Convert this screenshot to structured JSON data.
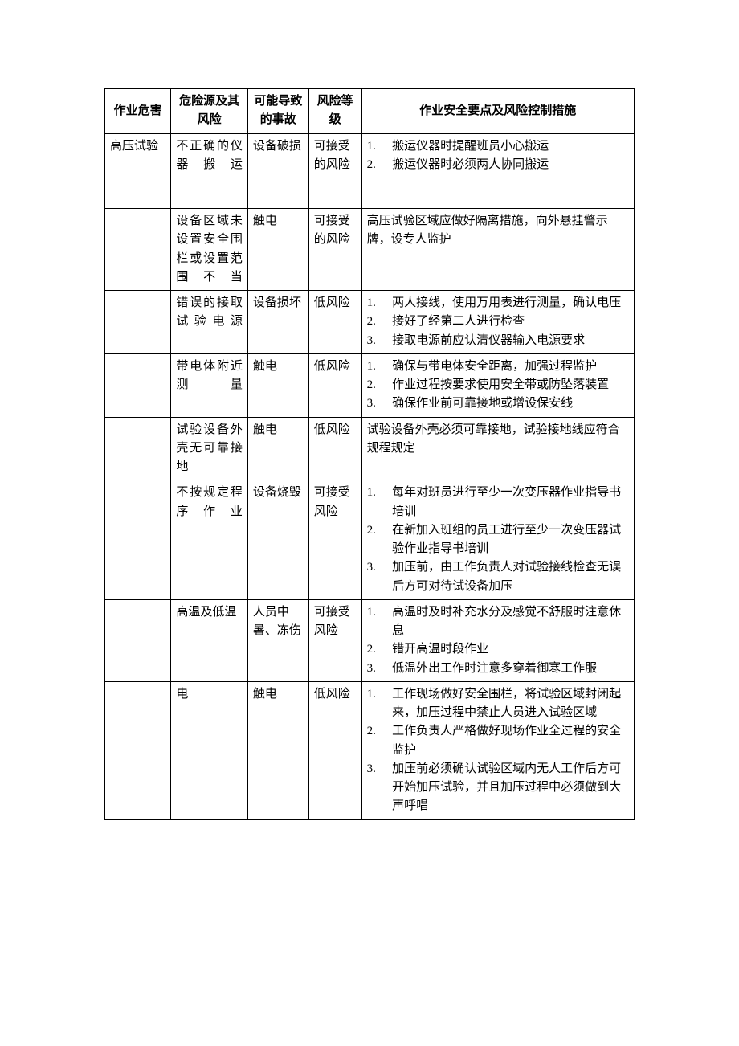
{
  "type": "table",
  "columns": [
    {
      "key": "hazard",
      "label": "作业危害",
      "width": "12.5%",
      "align": "center"
    },
    {
      "key": "source",
      "label": "危险源及其风险",
      "width": "14.5%",
      "align": "justify"
    },
    {
      "key": "accident",
      "label": "可能导致的事故",
      "width": "11.5%",
      "align": "left"
    },
    {
      "key": "level",
      "label": "风险等级",
      "width": "10%",
      "align": "left"
    },
    {
      "key": "measures",
      "label": "作业安全要点及风险控制措施",
      "width": "51.5%",
      "align": "left"
    }
  ],
  "rows": [
    {
      "hazard": "高压试验",
      "source": "不正确的仪器搬运",
      "source_justify": true,
      "accident": "设备破损",
      "level": "可接受的风险",
      "measures_list": [
        "搬运仪器时提醒班员小心搬运",
        "搬运仪器时必须两人协同搬运"
      ],
      "measures_extra_space": true
    },
    {
      "hazard": "",
      "source": "设备区域未设置安全围栏或设置范围不当",
      "source_justify": true,
      "accident": "触电",
      "level": "可接受的风险",
      "measures_plain": "高压试验区域应做好隔离措施，向外悬挂警示牌，设专人监护"
    },
    {
      "hazard": "",
      "source": "错误的接取试验电源",
      "source_justify": true,
      "accident": "设备损坏",
      "level": "低风险",
      "measures_list": [
        "两人接线，使用万用表进行测量，确认电压",
        "接好了经第二人进行检查",
        "接取电源前应认清仪器输入电源要求"
      ]
    },
    {
      "hazard": "",
      "source": "带电体附近测量",
      "source_justify": true,
      "accident": "触电",
      "level": "低风险",
      "measures_list": [
        "确保与带电体安全距离，加强过程监护",
        "作业过程按要求使用安全带或防坠落装置",
        "确保作业前可靠接地或增设保安线"
      ]
    },
    {
      "hazard": "",
      "source": "试验设备外壳无可靠接地",
      "source_justify": true,
      "accident": "触电",
      "level": "低风险",
      "measures_plain": "试验设备外壳必须可靠接地，试验接地线应符合规程规定"
    },
    {
      "hazard": "",
      "source": "不按规定程序作业",
      "source_justify": true,
      "accident": "设备烧毁",
      "level": "可接受风险",
      "measures_list": [
        "每年对班员进行至少一次变压器作业指导书培训",
        "在新加入班组的员工进行至少一次变压器试验作业指导书培训",
        "加压前，由工作负责人对试验接线检查无误后方可对待试设备加压"
      ]
    },
    {
      "hazard": "",
      "source": "高温及低温",
      "source_justify": false,
      "accident": "人员中暑、冻伤",
      "level": "可接受风险",
      "measures_list": [
        "高温时及时补充水分及感觉不舒服时注意休息",
        "错开高温时段作业",
        "低温外出工作时注意多穿着御寒工作服"
      ]
    },
    {
      "hazard": "",
      "source": "电",
      "source_justify": false,
      "accident": "触电",
      "level": "低风险",
      "measures_list": [
        "工作现场做好安全围栏，将试验区域封闭起来，加压过程中禁止人员进入试验区域",
        "工作负责人严格做好现场作业全过程的安全监护",
        "加压前必须确认试验区域内无人工作后方可开始加压试验，并且加压过程中必须做到大声呼唱"
      ]
    }
  ],
  "style": {
    "font_family": "SimSun",
    "font_size_pt": 11,
    "text_color": "#000000",
    "border_color": "#000000",
    "background_color": "#ffffff",
    "line_height": 1.55
  }
}
